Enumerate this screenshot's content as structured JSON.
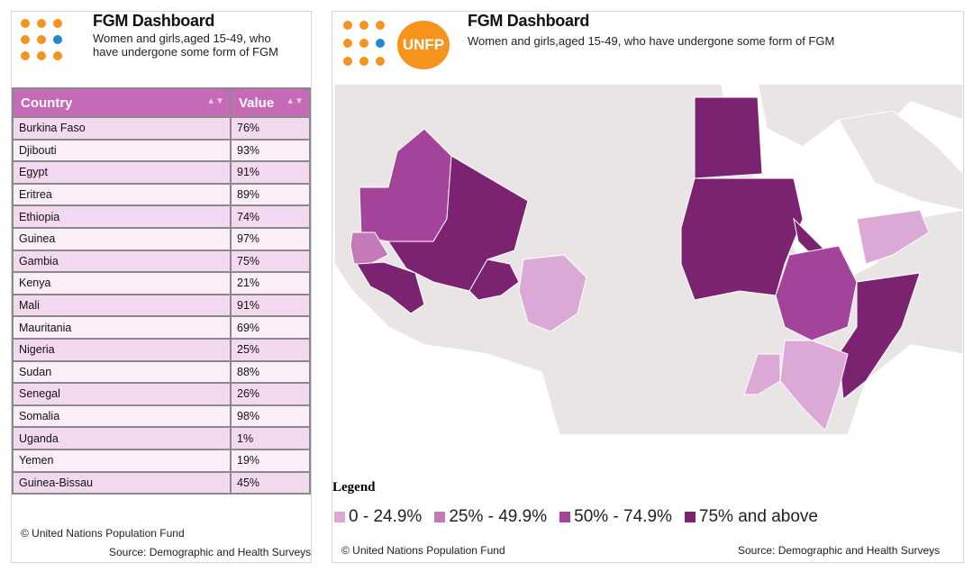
{
  "left": {
    "title": "FGM Dashboard",
    "subtitle": "Women and girls,aged 15-49, who have undergone some form of FGM",
    "table": {
      "columns": [
        "Country",
        "Value"
      ],
      "rows": [
        [
          "Burkina Faso",
          "76%"
        ],
        [
          "Djibouti",
          "93%"
        ],
        [
          "Egypt",
          "91%"
        ],
        [
          "Eritrea",
          "89%"
        ],
        [
          "Ethiopia",
          "74%"
        ],
        [
          "Guinea",
          "97%"
        ],
        [
          "Gambia",
          "75%"
        ],
        [
          "Kenya",
          "21%"
        ],
        [
          "Mali",
          "91%"
        ],
        [
          "Mauritania",
          "69%"
        ],
        [
          "Nigeria",
          "25%"
        ],
        [
          "Sudan",
          "88%"
        ],
        [
          "Senegal",
          "26%"
        ],
        [
          "Somalia",
          "98%"
        ],
        [
          "Uganda",
          "1%"
        ],
        [
          "Yemen",
          "19%"
        ],
        [
          "Guinea-Bissau",
          "45%"
        ]
      ]
    },
    "credit": "© United Nations Population Fund",
    "source": "Source: Demographic and Health Surveys"
  },
  "right": {
    "logo_text": "UNFP",
    "title": "FGM Dashboard",
    "subtitle": "Women and girls,aged 15-49, who have undergone some form of FGM",
    "legend": {
      "title": "Legend",
      "items": [
        "0 - 24.9%",
        "25% - 49.9%",
        "50% - 74.9%",
        "75% and above"
      ]
    },
    "credit": "© United Nations Population Fund",
    "source": "Source: Demographic and Health Surveys"
  }
}
